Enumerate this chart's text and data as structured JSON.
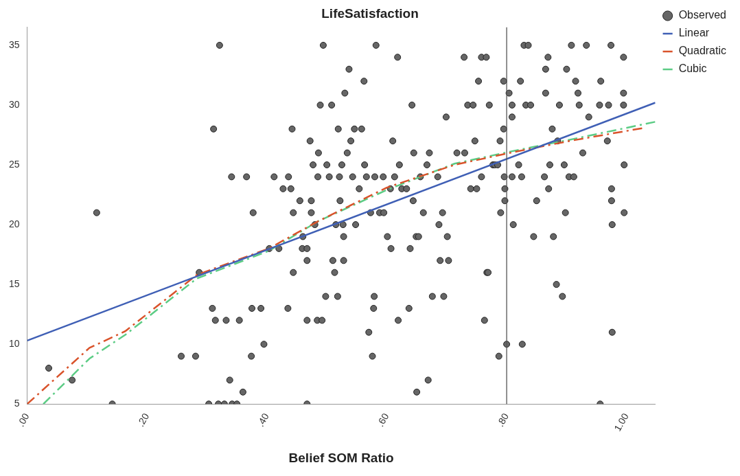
{
  "chart_data": {
    "type": "scatter",
    "title": "LifeSatisfaction",
    "xlabel": "Belief SOM Ratio",
    "xlim": [
      0,
      1.048
    ],
    "ylim": [
      5,
      36.5
    ],
    "xticks": [
      {
        "value": 0,
        "label": ".00"
      },
      {
        "value": 0.2,
        "label": ".20"
      },
      {
        "value": 0.4,
        "label": ".40"
      },
      {
        "value": 0.6,
        "label": ".60"
      },
      {
        "value": 0.8,
        "label": ".80"
      },
      {
        "value": 1,
        "label": "1.00"
      }
    ],
    "yticks": [
      5,
      10,
      15,
      20,
      25,
      30,
      35
    ],
    "grid": false,
    "legend": "top right",
    "ref_lines": [
      {
        "axis": "x",
        "value": 0.8,
        "color": "#555555"
      }
    ],
    "series": [
      {
        "name": "Observed",
        "marker": "circle",
        "color": "#666666",
        "x": [
          0.036,
          0.075,
          0.116,
          0.142,
          0.257,
          0.281,
          0.287,
          0.303,
          0.309,
          0.311,
          0.314,
          0.321,
          0.319,
          0.329,
          0.332,
          0.338,
          0.341,
          0.342,
          0.35,
          0.354,
          0.36,
          0.366,
          0.374,
          0.375,
          0.377,
          0.39,
          0.395,
          0.404,
          0.412,
          0.42,
          0.427,
          0.436,
          0.435,
          0.44,
          0.442,
          0.444,
          0.444,
          0.455,
          0.459,
          0.46,
          0.467,
          0.467,
          0.467,
          0.467,
          0.472,
          0.474,
          0.474,
          0.477,
          0.48,
          0.484,
          0.485,
          0.486,
          0.489,
          0.492,
          0.494,
          0.498,
          0.5,
          0.504,
          0.508,
          0.51,
          0.513,
          0.515,
          0.518,
          0.519,
          0.521,
          0.522,
          0.525,
          0.527,
          0.528,
          0.528,
          0.53,
          0.534,
          0.537,
          0.54,
          0.543,
          0.546,
          0.548,
          0.554,
          0.558,
          0.562,
          0.563,
          0.566,
          0.57,
          0.573,
          0.576,
          0.578,
          0.579,
          0.58,
          0.582,
          0.588,
          0.594,
          0.595,
          0.601,
          0.606,
          0.607,
          0.61,
          0.613,
          0.618,
          0.619,
          0.621,
          0.625,
          0.633,
          0.637,
          0.639,
          0.642,
          0.644,
          0.645,
          0.649,
          0.65,
          0.653,
          0.656,
          0.661,
          0.667,
          0.669,
          0.671,
          0.676,
          0.685,
          0.687,
          0.689,
          0.693,
          0.695,
          0.699,
          0.701,
          0.703,
          0.717,
          0.73,
          0.729,
          0.735,
          0.74,
          0.744,
          0.747,
          0.75,
          0.753,
          0.758,
          0.758,
          0.763,
          0.766,
          0.767,
          0.769,
          0.771,
          0.777,
          0.78,
          0.785,
          0.789,
          0.787,
          0.79,
          0.795,
          0.795,
          0.796,
          0.797,
          0.797,
          0.8,
          0.804,
          0.809,
          0.809,
          0.809,
          0.811,
          0.82,
          0.823,
          0.825,
          0.826,
          0.829,
          0.836,
          0.832,
          0.84,
          0.845,
          0.85,
          0.863,
          0.865,
          0.865,
          0.869,
          0.87,
          0.872,
          0.876,
          0.878,
          0.883,
          0.885,
          0.888,
          0.893,
          0.896,
          0.898,
          0.9,
          0.904,
          0.908,
          0.912,
          0.915,
          0.919,
          0.921,
          0.927,
          0.933,
          0.937,
          0.955,
          0.956,
          0.957,
          0.97,
          0.968,
          0.974,
          0.975,
          0.975,
          0.976,
          0.976,
          0.995,
          0.995,
          0.995,
          0.996,
          0.996
        ],
        "values": [
          8,
          7,
          21,
          5,
          9,
          9,
          16,
          5,
          13,
          28,
          12,
          35,
          5,
          5,
          12,
          7,
          24,
          5,
          5,
          12,
          6,
          24,
          9,
          13,
          21,
          13,
          10,
          18,
          24,
          18,
          23,
          24,
          13,
          23,
          28,
          21,
          16,
          22,
          18,
          19,
          18,
          17,
          5,
          12,
          27,
          22,
          21,
          25,
          20,
          12,
          24,
          26,
          30,
          12,
          35,
          14,
          25,
          24,
          30,
          17,
          16,
          20,
          14,
          28,
          24,
          22,
          25,
          20,
          19,
          17,
          31,
          26,
          33,
          27,
          24,
          28,
          20,
          23,
          28,
          32,
          25,
          24,
          11,
          21,
          9,
          13,
          14,
          24,
          35,
          21,
          24,
          21,
          19,
          23,
          18,
          27,
          24,
          34,
          12,
          25,
          23,
          23,
          13,
          18,
          30,
          22,
          26,
          19,
          6,
          19,
          24,
          21,
          25,
          7,
          26,
          14,
          24,
          20,
          17,
          21,
          14,
          29,
          19,
          17,
          26,
          26,
          34,
          30,
          23,
          30,
          27,
          23,
          32,
          24,
          34,
          12,
          34,
          16,
          16,
          30,
          25,
          25,
          25,
          27,
          9,
          21,
          32,
          28,
          24,
          23,
          22,
          10,
          31,
          30,
          29,
          24,
          20,
          25,
          32,
          24,
          10,
          35,
          35,
          30,
          30,
          19,
          22,
          24,
          31,
          33,
          34,
          23,
          25,
          28,
          19,
          15,
          27,
          30,
          14,
          25,
          21,
          33,
          24,
          35,
          24,
          32,
          31,
          30,
          26,
          35,
          29,
          30,
          5,
          32,
          30,
          27,
          35,
          22,
          23,
          20,
          11,
          34,
          31,
          30,
          25,
          21
        ]
      },
      {
        "name": "Linear",
        "type": "line",
        "color": "#3f5fb5",
        "line_style": "solid",
        "marker": "none",
        "x": [
          0,
          1.048
        ],
        "values": [
          10.3,
          30.2
        ]
      },
      {
        "name": "Quadratic",
        "type": "line",
        "color": "#d9532b",
        "line_style": "dashed",
        "marker": "none",
        "x": [
          0,
          0.104,
          0.164,
          0.283,
          0.403,
          0.486,
          0.6,
          0.713,
          0.805,
          0.905,
          1.03
        ],
        "values": [
          5,
          9.7,
          11.1,
          15.8,
          18,
          20.3,
          23.1,
          25,
          26,
          27,
          28.1
        ]
      },
      {
        "name": "Cubic",
        "type": "line",
        "color": "#5ccc85",
        "line_style": "dashed",
        "marker": "none",
        "x": [
          0.027,
          0.104,
          0.164,
          0.283,
          0.403,
          0.486,
          0.6,
          0.713,
          0.805,
          0.905,
          1.048
        ],
        "values": [
          5,
          8.8,
          10.8,
          15.5,
          17.8,
          20.3,
          22.9,
          25.1,
          26.1,
          27.1,
          28.6
        ]
      }
    ]
  }
}
